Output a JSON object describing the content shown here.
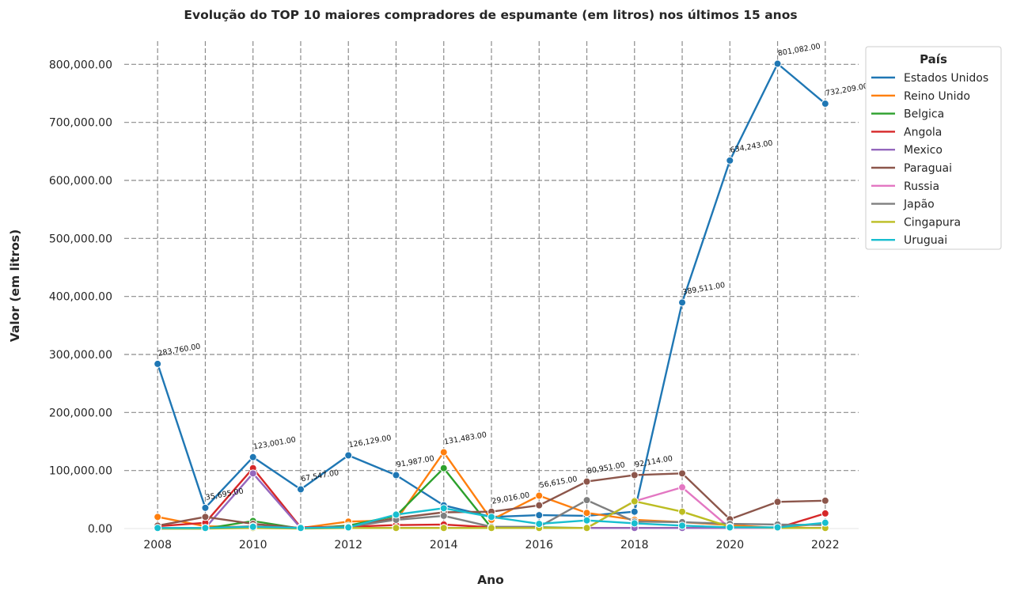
{
  "chart_data": {
    "type": "line",
    "title": "Evolução do TOP 10 maiores compradores de espumante (em litros) nos últimos 15 anos",
    "xlabel": "Ano",
    "ylabel": "Valor (em litros)",
    "xlim": [
      2007.3,
      2022.7
    ],
    "ylim": [
      0,
      840000
    ],
    "grid": true,
    "legend_title": "País",
    "legend_position": "outside-top-right",
    "x_ticks": [
      2008,
      2010,
      2012,
      2014,
      2016,
      2018,
      2020,
      2022
    ],
    "y_ticks": [
      0,
      100000,
      200000,
      300000,
      400000,
      500000,
      600000,
      700000,
      800000
    ],
    "y_tick_labels": [
      "0.00",
      "100,000.00",
      "200,000.00",
      "300,000.00",
      "400,000.00",
      "500,000.00",
      "600,000.00",
      "700,000.00",
      "800,000.00"
    ],
    "x": [
      2008,
      2009,
      2010,
      2011,
      2012,
      2013,
      2014,
      2015,
      2016,
      2017,
      2018,
      2019,
      2020,
      2021,
      2022
    ],
    "series": [
      {
        "name": "Estados Unidos",
        "color": "#1f77b4",
        "values": [
          283760,
          35695,
          123001,
          67547,
          126129,
          91987,
          40000,
          20000,
          23000,
          22000,
          29000,
          389511,
          634243,
          801082,
          732209
        ]
      },
      {
        "name": "Reino Unido",
        "color": "#ff7f0e",
        "values": [
          20000,
          4000,
          2000,
          1000,
          12000,
          14000,
          131483,
          15000,
          56615,
          27000,
          15000,
          11000,
          6000,
          1000,
          9000
        ]
      },
      {
        "name": "Belgica",
        "color": "#2ca02c",
        "values": [
          0,
          0,
          13000,
          0,
          5000,
          22000,
          104000,
          1000,
          2000,
          1000,
          1000,
          1000,
          1000,
          1000,
          1000
        ]
      },
      {
        "name": "Angola",
        "color": "#d62728",
        "values": [
          4000,
          10000,
          104000,
          2000,
          3000,
          6000,
          7000,
          2000,
          1000,
          1000,
          1000,
          1000,
          1000,
          1000,
          26000
        ]
      },
      {
        "name": "Mexico",
        "color": "#9467bd",
        "values": [
          0,
          1000,
          95000,
          1000,
          1000,
          1000,
          1000,
          1000,
          1000,
          1000,
          1000,
          1000,
          1000,
          1000,
          1000
        ]
      },
      {
        "name": "Paraguai",
        "color": "#8c564b",
        "values": [
          5000,
          20000,
          8000,
          1000,
          3000,
          18000,
          28000,
          29016,
          40000,
          80951,
          92114,
          95000,
          16000,
          46000,
          48000
        ]
      },
      {
        "name": "Russia",
        "color": "#e377c2",
        "values": [
          0,
          1000,
          1000,
          1000,
          1000,
          1000,
          1000,
          1000,
          1000,
          1000,
          47000,
          71000,
          1000,
          1000,
          1000
        ]
      },
      {
        "name": "Japão",
        "color": "#7f7f7f",
        "values": [
          1000,
          1000,
          4000,
          1000,
          3000,
          15000,
          22000,
          3000,
          3000,
          49000,
          12000,
          11000,
          8000,
          7000,
          6000
        ]
      },
      {
        "name": "Cingapura",
        "color": "#bcbd22",
        "values": [
          0,
          0,
          1000,
          0,
          1000,
          1000,
          1000,
          1000,
          1000,
          1000,
          47000,
          29000,
          3000,
          1000,
          1000
        ]
      },
      {
        "name": "Uruguai",
        "color": "#17becf",
        "values": [
          1000,
          1000,
          3000,
          1000,
          2000,
          24000,
          35000,
          20000,
          8000,
          14000,
          9000,
          5000,
          2000,
          2000,
          10000
        ]
      }
    ],
    "annotations": [
      {
        "x": 2008,
        "y": 283760,
        "text": "283,760.00"
      },
      {
        "x": 2009,
        "y": 35695,
        "text": "35,695.00"
      },
      {
        "x": 2010,
        "y": 123001,
        "text": "123,001.00"
      },
      {
        "x": 2011,
        "y": 67547,
        "text": "67,547.00"
      },
      {
        "x": 2012,
        "y": 126129,
        "text": "126,129.00"
      },
      {
        "x": 2013,
        "y": 91987,
        "text": "91,987.00"
      },
      {
        "x": 2014,
        "y": 131483,
        "text": "131,483.00"
      },
      {
        "x": 2015,
        "y": 29016,
        "text": "29,016.00"
      },
      {
        "x": 2016,
        "y": 56615,
        "text": "56,615.00"
      },
      {
        "x": 2017,
        "y": 80951,
        "text": "80,951.00"
      },
      {
        "x": 2018,
        "y": 92114,
        "text": "92,114.00"
      },
      {
        "x": 2019,
        "y": 389511,
        "text": "389,511.00"
      },
      {
        "x": 2020,
        "y": 634243,
        "text": "634,243.00"
      },
      {
        "x": 2021,
        "y": 801082,
        "text": "801,082.00"
      },
      {
        "x": 2022,
        "y": 732209,
        "text": "732,209.00"
      }
    ]
  }
}
